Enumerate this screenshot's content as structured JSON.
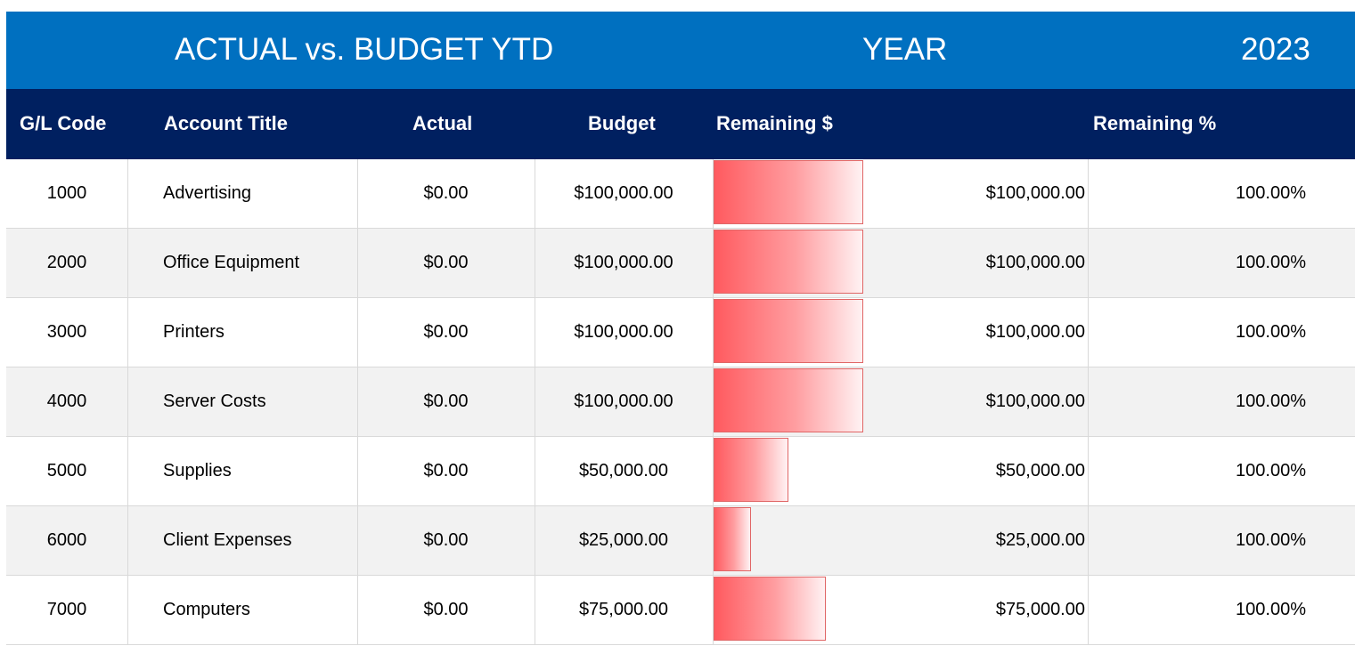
{
  "title_bar": {
    "title": "ACTUAL vs. BUDGET YTD",
    "year_label": "YEAR",
    "year_value": "2023"
  },
  "columns": {
    "gl_code": "G/L Code",
    "account_title": "Account Title",
    "actual": "Actual",
    "budget": "Budget",
    "remaining_dollar": "Remaining $",
    "remaining_pct": "Remaining %"
  },
  "colors": {
    "title_bar": "#0070c0",
    "header_row": "#002060",
    "data_bar": "#ff5a5f"
  },
  "bar_scale_max": 100000,
  "rows": [
    {
      "code": "1000",
      "title": "Advertising",
      "actual": "$0.00",
      "budget": "$100,000.00",
      "remaining_value": 100000,
      "remaining": "$100,000.00",
      "remaining_pct": "100.00%"
    },
    {
      "code": "2000",
      "title": "Office Equipment",
      "actual": "$0.00",
      "budget": "$100,000.00",
      "remaining_value": 100000,
      "remaining": "$100,000.00",
      "remaining_pct": "100.00%"
    },
    {
      "code": "3000",
      "title": "Printers",
      "actual": "$0.00",
      "budget": "$100,000.00",
      "remaining_value": 100000,
      "remaining": "$100,000.00",
      "remaining_pct": "100.00%"
    },
    {
      "code": "4000",
      "title": "Server Costs",
      "actual": "$0.00",
      "budget": "$100,000.00",
      "remaining_value": 100000,
      "remaining": "$100,000.00",
      "remaining_pct": "100.00%"
    },
    {
      "code": "5000",
      "title": "Supplies",
      "actual": "$0.00",
      "budget": "$50,000.00",
      "remaining_value": 50000,
      "remaining": "$50,000.00",
      "remaining_pct": "100.00%"
    },
    {
      "code": "6000",
      "title": "Client Expenses",
      "actual": "$0.00",
      "budget": "$25,000.00",
      "remaining_value": 25000,
      "remaining": "$25,000.00",
      "remaining_pct": "100.00%"
    },
    {
      "code": "7000",
      "title": "Computers",
      "actual": "$0.00",
      "budget": "$75,000.00",
      "remaining_value": 75000,
      "remaining": "$75,000.00",
      "remaining_pct": "100.00%"
    }
  ]
}
